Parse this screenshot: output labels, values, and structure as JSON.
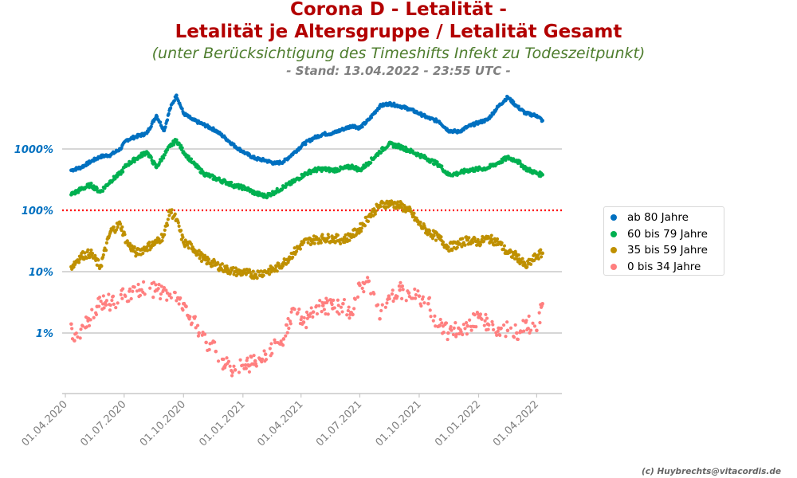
{
  "header": {
    "title_line1": "Corona D - Letalität -",
    "title_line2": "Letalität je Altersgruppe / Letalität Gesamt",
    "subtitle": "(unter Berücksichtigung des Timeshifts Infekt zu Todeszeitpunkt)",
    "stand": "- Stand: 13.04.2022 - 23:55 UTC -"
  },
  "credit": "(c) Huybrechts@vitacordis.de",
  "colors": {
    "ab80": "#0070c0",
    "j60_79": "#00b050",
    "j35_59": "#bf9000",
    "j0_34": "#ff7f7f",
    "reference_line": "#ff0000",
    "y_tick_labels": "#0070c0"
  },
  "chart_data": {
    "type": "scatter",
    "y_scale": "log",
    "ylim": [
      "0.1%",
      "~8000%"
    ],
    "xlim": [
      "2020-03-27",
      "2022-05-10"
    ],
    "grid": "horizontal at y ticks",
    "reference_line": {
      "value": "100%",
      "style": "dotted red"
    },
    "y_ticks": [
      "1000%",
      "100%",
      "10%",
      "1%"
    ],
    "x_ticks": [
      "01.04.2020",
      "01.07.2020",
      "01.10.2020",
      "01.01.2021",
      "01.04.2021",
      "01.07.2021",
      "01.10.2021",
      "01.01.2022",
      "01.04.2022"
    ],
    "legend_position": "right",
    "series": [
      {
        "name": "ab 80 Jahre",
        "points": [
          [
            "2020-04-10",
            450
          ],
          [
            "2020-04-25",
            500
          ],
          [
            "2020-05-10",
            620
          ],
          [
            "2020-05-25",
            750
          ],
          [
            "2020-06-10",
            800
          ],
          [
            "2020-06-25",
            1000
          ],
          [
            "2020-07-05",
            1400
          ],
          [
            "2020-07-20",
            1600
          ],
          [
            "2020-08-05",
            1800
          ],
          [
            "2020-08-20",
            3500
          ],
          [
            "2020-09-01",
            2000
          ],
          [
            "2020-09-10",
            4500
          ],
          [
            "2020-09-20",
            7500
          ],
          [
            "2020-10-01",
            3800
          ],
          [
            "2020-10-15",
            3000
          ],
          [
            "2020-11-01",
            2500
          ],
          [
            "2020-11-20",
            2000
          ],
          [
            "2020-12-05",
            1500
          ],
          [
            "2020-12-20",
            1100
          ],
          [
            "2021-01-05",
            850
          ],
          [
            "2021-01-20",
            700
          ],
          [
            "2021-02-05",
            650
          ],
          [
            "2021-02-20",
            580
          ],
          [
            "2021-03-05",
            620
          ],
          [
            "2021-03-20",
            850
          ],
          [
            "2021-04-05",
            1200
          ],
          [
            "2021-04-20",
            1500
          ],
          [
            "2021-05-05",
            1750
          ],
          [
            "2021-05-20",
            1800
          ],
          [
            "2021-06-05",
            2100
          ],
          [
            "2021-06-20",
            2400
          ],
          [
            "2021-07-01",
            2200
          ],
          [
            "2021-07-15",
            3000
          ],
          [
            "2021-08-01",
            5000
          ],
          [
            "2021-08-15",
            5500
          ],
          [
            "2021-09-01",
            5000
          ],
          [
            "2021-09-15",
            4500
          ],
          [
            "2021-10-01",
            3800
          ],
          [
            "2021-10-15",
            3200
          ],
          [
            "2021-11-01",
            2800
          ],
          [
            "2021-11-15",
            2000
          ],
          [
            "2021-12-01",
            1900
          ],
          [
            "2021-12-15",
            2300
          ],
          [
            "2022-01-01",
            2700
          ],
          [
            "2022-01-15",
            3000
          ],
          [
            "2022-02-01",
            5000
          ],
          [
            "2022-02-15",
            7000
          ],
          [
            "2022-03-01",
            5000
          ],
          [
            "2022-03-15",
            3800
          ],
          [
            "2022-04-01",
            3500
          ],
          [
            "2022-04-10",
            2900
          ]
        ]
      },
      {
        "name": "60 bis 79 Jahre",
        "points": [
          [
            "2020-04-10",
            180
          ],
          [
            "2020-04-25",
            220
          ],
          [
            "2020-05-10",
            260
          ],
          [
            "2020-05-25",
            200
          ],
          [
            "2020-06-10",
            300
          ],
          [
            "2020-06-25",
            400
          ],
          [
            "2020-07-05",
            550
          ],
          [
            "2020-07-20",
            700
          ],
          [
            "2020-08-05",
            900
          ],
          [
            "2020-08-20",
            500
          ],
          [
            "2020-09-01",
            800
          ],
          [
            "2020-09-10",
            1100
          ],
          [
            "2020-09-20",
            1400
          ],
          [
            "2020-10-01",
            900
          ],
          [
            "2020-10-15",
            600
          ],
          [
            "2020-11-01",
            400
          ],
          [
            "2020-11-20",
            330
          ],
          [
            "2020-12-05",
            290
          ],
          [
            "2020-12-20",
            250
          ],
          [
            "2021-01-05",
            230
          ],
          [
            "2021-01-20",
            190
          ],
          [
            "2021-02-05",
            170
          ],
          [
            "2021-02-20",
            200
          ],
          [
            "2021-03-05",
            240
          ],
          [
            "2021-03-20",
            290
          ],
          [
            "2021-04-05",
            380
          ],
          [
            "2021-04-20",
            450
          ],
          [
            "2021-05-05",
            470
          ],
          [
            "2021-05-20",
            450
          ],
          [
            "2021-06-05",
            480
          ],
          [
            "2021-06-20",
            520
          ],
          [
            "2021-07-01",
            450
          ],
          [
            "2021-07-15",
            600
          ],
          [
            "2021-08-01",
            900
          ],
          [
            "2021-08-15",
            1200
          ],
          [
            "2021-09-01",
            1100
          ],
          [
            "2021-09-15",
            950
          ],
          [
            "2021-10-01",
            800
          ],
          [
            "2021-10-15",
            680
          ],
          [
            "2021-11-01",
            550
          ],
          [
            "2021-11-15",
            380
          ],
          [
            "2021-12-01",
            400
          ],
          [
            "2021-12-15",
            450
          ],
          [
            "2022-01-01",
            470
          ],
          [
            "2022-01-15",
            490
          ],
          [
            "2022-02-01",
            600
          ],
          [
            "2022-02-15",
            720
          ],
          [
            "2022-03-01",
            650
          ],
          [
            "2022-03-15",
            480
          ],
          [
            "2022-04-01",
            400
          ],
          [
            "2022-04-10",
            380
          ]
        ]
      },
      {
        "name": "35 bis 59 Jahre",
        "points": [
          [
            "2020-04-10",
            12
          ],
          [
            "2020-04-25",
            18
          ],
          [
            "2020-05-10",
            20
          ],
          [
            "2020-05-25",
            12
          ],
          [
            "2020-06-10",
            45
          ],
          [
            "2020-06-25",
            60
          ],
          [
            "2020-07-05",
            30
          ],
          [
            "2020-07-20",
            20
          ],
          [
            "2020-08-05",
            25
          ],
          [
            "2020-08-20",
            30
          ],
          [
            "2020-09-01",
            40
          ],
          [
            "2020-09-10",
            100
          ],
          [
            "2020-09-20",
            70
          ],
          [
            "2020-10-01",
            30
          ],
          [
            "2020-10-15",
            25
          ],
          [
            "2020-11-01",
            16
          ],
          [
            "2020-11-20",
            13
          ],
          [
            "2020-12-05",
            11
          ],
          [
            "2020-12-20",
            10
          ],
          [
            "2021-01-05",
            9.5
          ],
          [
            "2021-01-20",
            9
          ],
          [
            "2021-02-05",
            10
          ],
          [
            "2021-02-20",
            11
          ],
          [
            "2021-03-05",
            14
          ],
          [
            "2021-03-20",
            20
          ],
          [
            "2021-04-05",
            30
          ],
          [
            "2021-04-20",
            33
          ],
          [
            "2021-05-05",
            35
          ],
          [
            "2021-05-20",
            35
          ],
          [
            "2021-06-05",
            33
          ],
          [
            "2021-06-20",
            40
          ],
          [
            "2021-07-01",
            50
          ],
          [
            "2021-07-15",
            80
          ],
          [
            "2021-08-01",
            120
          ],
          [
            "2021-08-15",
            130
          ],
          [
            "2021-09-01",
            120
          ],
          [
            "2021-09-15",
            100
          ],
          [
            "2021-10-01",
            60
          ],
          [
            "2021-10-15",
            45
          ],
          [
            "2021-11-01",
            35
          ],
          [
            "2021-11-15",
            25
          ],
          [
            "2021-12-01",
            28
          ],
          [
            "2021-12-15",
            33
          ],
          [
            "2022-01-01",
            30
          ],
          [
            "2022-01-15",
            35
          ],
          [
            "2022-02-01",
            30
          ],
          [
            "2022-02-15",
            20
          ],
          [
            "2022-03-01",
            18
          ],
          [
            "2022-03-15",
            12
          ],
          [
            "2022-04-01",
            18
          ],
          [
            "2022-04-10",
            20
          ]
        ]
      },
      {
        "name": "0 bis 34 Jahre",
        "points": [
          [
            "2020-04-10",
            1.4
          ],
          [
            "2020-04-15",
            0.75
          ],
          [
            "2020-05-20",
            2.7
          ],
          [
            "2020-07-25",
            5
          ],
          [
            "2020-08-20",
            5
          ],
          [
            "2020-10-01",
            3
          ],
          [
            "2020-10-05",
            2.7
          ],
          [
            "2020-10-25",
            1
          ],
          [
            "2020-11-05",
            0.7
          ],
          [
            "2020-11-20",
            0.5
          ],
          [
            "2020-12-05",
            0.3
          ],
          [
            "2020-12-20",
            0.25
          ],
          [
            "2021-01-05",
            0.3
          ],
          [
            "2021-01-20",
            0.35
          ],
          [
            "2021-02-05",
            0.45
          ],
          [
            "2021-02-20",
            0.7
          ],
          [
            "2021-03-05",
            0.8
          ],
          [
            "2021-03-20",
            2.5
          ],
          [
            "2021-04-05",
            1.5
          ],
          [
            "2021-04-20",
            2.2
          ],
          [
            "2021-05-05",
            2.8
          ],
          [
            "2021-05-20",
            2.5
          ],
          [
            "2021-06-05",
            3
          ],
          [
            "2021-06-20",
            2
          ],
          [
            "2021-07-01",
            6
          ],
          [
            "2021-07-15",
            7
          ],
          [
            "2021-08-01",
            1.7
          ],
          [
            "2021-08-15",
            4
          ],
          [
            "2021-09-01",
            5
          ],
          [
            "2021-09-15",
            4.5
          ],
          [
            "2021-10-01",
            4
          ],
          [
            "2021-10-15",
            3
          ],
          [
            "2021-11-01",
            1.3
          ],
          [
            "2021-11-15",
            1
          ],
          [
            "2021-12-01",
            1.2
          ],
          [
            "2021-12-15",
            1.3
          ],
          [
            "2022-01-01",
            1.8
          ],
          [
            "2022-01-15",
            1.4
          ],
          [
            "2022-02-01",
            1.2
          ],
          [
            "2022-02-15",
            1.1
          ],
          [
            "2022-03-01",
            1
          ],
          [
            "2022-03-15",
            1.5
          ],
          [
            "2022-04-01",
            1.1
          ],
          [
            "2022-04-10",
            3
          ]
        ]
      }
    ]
  }
}
